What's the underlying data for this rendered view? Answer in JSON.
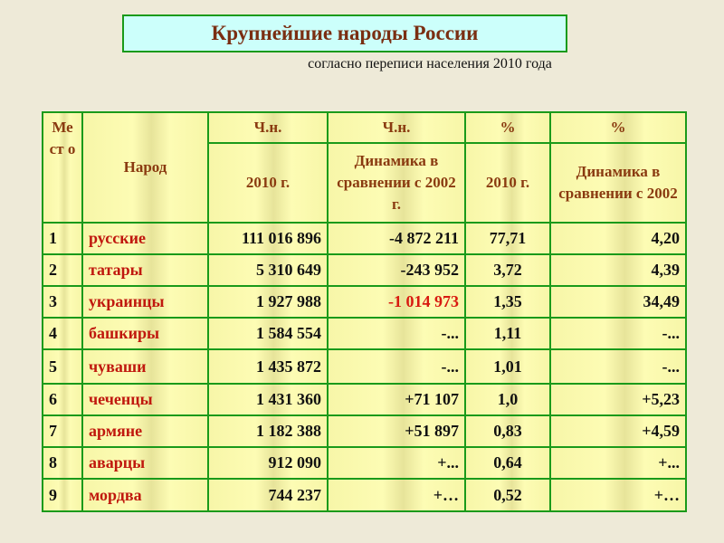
{
  "title": "Крупнейшие народы России",
  "subtitle": "согласно переписи населения 2010 года",
  "headers": {
    "place": "Ме ст о",
    "people": "Народ",
    "abs": "Ч.н.",
    "abs2": "Ч.н.",
    "pct": "%",
    "pct2": "%",
    "abs_2010": "2010 г.",
    "abs_dyn": "Динамика в сравнении с 2002 г.",
    "pct_2010": "2010 г.",
    "pct_dyn": "Динамика в сравнении с 2002"
  },
  "accent_color": "#1a9a1a",
  "rows": [
    {
      "place": "1",
      "people": "русские",
      "count": "111 016 896",
      "count_dyn": "-4 872 211",
      "pct": "77,71",
      "pct_dyn": "4,20"
    },
    {
      "place": "2",
      "people": "татары",
      "count": "5 310 649",
      "count_dyn": "-243 952",
      "pct": "3,72",
      "pct_dyn": "4,39"
    },
    {
      "place": "3",
      "people": "украинцы",
      "count": "1 927 988",
      "count_dyn": "-1 014 973",
      "pct": "1,35",
      "pct_dyn": "34,49"
    },
    {
      "place": "4",
      "people": "башкиры",
      "count": "1 584 554",
      "count_dyn": "-...",
      "pct": "1,11",
      "pct_dyn": "-..."
    },
    {
      "place": "5",
      "people": "чуваши",
      "count": "1 435 872",
      "count_dyn": "-...",
      "pct": "1,01",
      "pct_dyn": "-..."
    },
    {
      "place": "6",
      "people": "чеченцы",
      "count": "1 431 360",
      "count_dyn": "+71 107",
      "pct": "1,0",
      "pct_dyn": "+5,23"
    },
    {
      "place": "7",
      "people": "армяне",
      "count": "1 182 388",
      "count_dyn": "+51 897",
      "pct": "0,83",
      "pct_dyn": "+4,59"
    },
    {
      "place": "8",
      "people": "аварцы",
      "count": "912 090",
      "count_dyn": "+...",
      "pct": "0,64",
      "pct_dyn": "+..."
    },
    {
      "place": "9",
      "people": "мордва",
      "count": "744 237",
      "count_dyn": "+…",
      "pct": "0,52",
      "pct_dyn": "+…"
    }
  ]
}
